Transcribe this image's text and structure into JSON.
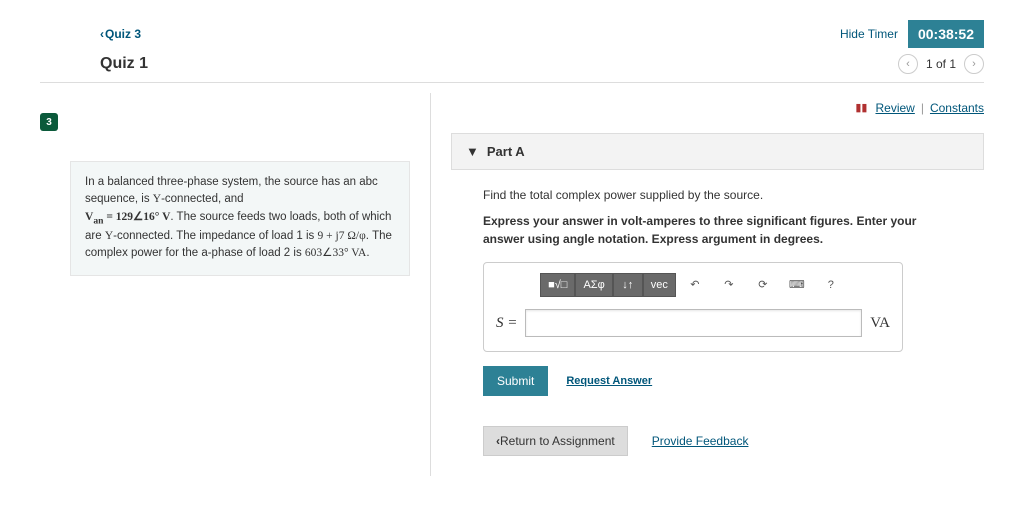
{
  "breadcrumb": {
    "back": "Quiz 3"
  },
  "timer": {
    "hide_label": "Hide Timer",
    "value": "00:38:52"
  },
  "header": {
    "title": "Quiz 1",
    "pager": {
      "pos": "1 of 1"
    }
  },
  "step": {
    "num": "3"
  },
  "problem": {
    "line1": "In a balanced three-phase system, the source has an abc sequence, is ",
    "y1": "Y",
    "line1b": "-connected, and",
    "van_lhs": "V",
    "van_sub": "an",
    "van_eq": " = 129∠16° V",
    "line2": ". The source feeds two loads, both of which are ",
    "y2": "Y",
    "line2b": "-connected. The impedance of load 1 is ",
    "z1": "9 + j7 Ω/φ",
    "line3": ". The complex power for the a-phase of load 2 is ",
    "s2": "603∠33° VA",
    "line3b": "."
  },
  "links": {
    "review": "Review",
    "constants": "Constants"
  },
  "part": {
    "title": "Part A",
    "prompt": "Find the total complex power supplied by the source.",
    "instruction": "Express your answer in volt-amperes to three significant figures. Enter your answer using angle notation. Express argument in degrees."
  },
  "toolbar": {
    "t1": "■√□",
    "t2": "ΑΣφ",
    "t3": "↓↑",
    "t4": "vec",
    "undo": "↶",
    "redo": "↷",
    "reset": "⟳",
    "kb": "⌨",
    "help": "?"
  },
  "answer": {
    "lhs": "S =",
    "unit": "VA",
    "submit": "Submit",
    "request": "Request Answer"
  },
  "bottom": {
    "return": "Return to Assignment",
    "feedback": "Provide Feedback"
  }
}
